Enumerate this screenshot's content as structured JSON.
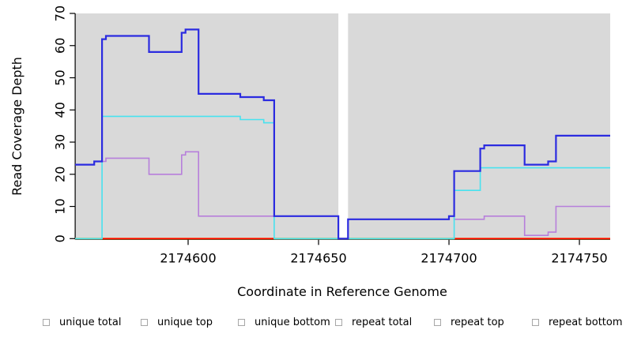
{
  "chart_data": {
    "type": "line",
    "line_style": "step",
    "title": "",
    "xlabel": "Coordinate in Reference Genome",
    "ylabel": "Read Coverage Depth",
    "xlim": [
      2174556.7,
      2174761.8
    ],
    "ylim": [
      0,
      70
    ],
    "x_ticks": [
      2174600,
      2174650,
      2174700,
      2174750
    ],
    "y_ticks": [
      0,
      10,
      20,
      30,
      40,
      50,
      60,
      70
    ],
    "grid": "off",
    "legend_position": "bottom",
    "plot_background": "#d9d9d9",
    "gap_region": {
      "x_start": 2174657.6,
      "x_end": 2174661.3,
      "color": "#ffffff"
    },
    "baseline_blend_color": "#8fd9a8",
    "baseline_blend_segments": [
      [
        2174556.7,
        2174567
      ],
      [
        2174633,
        2174702
      ]
    ],
    "series": [
      {
        "name": "unique total",
        "color": "#2b2be0",
        "width": 2.2,
        "x_end": 2174761.8,
        "points": [
          [
            2174556.7,
            23
          ],
          [
            2174564,
            24
          ],
          [
            2174567,
            62
          ],
          [
            2174568.5,
            63
          ],
          [
            2174585,
            58
          ],
          [
            2174597.5,
            64
          ],
          [
            2174599,
            65
          ],
          [
            2174604,
            45
          ],
          [
            2174620,
            44
          ],
          [
            2174629,
            43
          ],
          [
            2174633,
            7
          ],
          [
            2174657.6,
            0
          ],
          [
            2174661.3,
            6
          ],
          [
            2174700,
            7
          ],
          [
            2174702,
            21
          ],
          [
            2174712,
            28
          ],
          [
            2174713.5,
            29
          ],
          [
            2174729,
            23
          ],
          [
            2174738,
            24
          ],
          [
            2174741,
            32
          ]
        ]
      },
      {
        "name": "unique top",
        "color": "#48e2ef",
        "width": 1.6,
        "x_end": 2174761.8,
        "points": [
          [
            2174556.7,
            0
          ],
          [
            2174567,
            38
          ],
          [
            2174620,
            37
          ],
          [
            2174629,
            36
          ],
          [
            2174633,
            0
          ],
          [
            2174702,
            15
          ],
          [
            2174712,
            22
          ]
        ]
      },
      {
        "name": "unique bottom",
        "color": "#b77fdb",
        "width": 1.6,
        "x_end": 2174761.8,
        "points": [
          [
            2174556.7,
            23
          ],
          [
            2174564,
            24
          ],
          [
            2174568.5,
            25
          ],
          [
            2174585,
            20
          ],
          [
            2174597.5,
            26
          ],
          [
            2174599,
            27
          ],
          [
            2174604,
            7
          ],
          [
            2174657.6,
            0
          ],
          [
            2174661.3,
            6
          ],
          [
            2174700,
            7
          ],
          [
            2174702,
            6
          ],
          [
            2174713.5,
            7
          ],
          [
            2174729,
            1
          ],
          [
            2174738,
            2
          ],
          [
            2174741,
            10
          ]
        ]
      },
      {
        "name": "repeat total",
        "color": "#ff0000",
        "width": 1.6,
        "x_end": 2174761.8,
        "points": [
          [
            2174556.7,
            0
          ]
        ]
      },
      {
        "name": "repeat top",
        "color": "#ffff00",
        "width": 1.6,
        "x_end": 2174761.8,
        "points": [
          [
            2174556.7,
            0
          ]
        ]
      },
      {
        "name": "repeat bottom",
        "color": "#ffa500",
        "width": 2.0,
        "x_end": 2174761.8,
        "points": [
          [
            2174556.7,
            0
          ]
        ]
      }
    ],
    "legend": [
      {
        "label": "unique total",
        "color": "#0000ee"
      },
      {
        "label": "unique top",
        "color": "#00ffff"
      },
      {
        "label": "unique bottom",
        "color": "#a623d8"
      },
      {
        "label": "repeat total",
        "color": "#ff0000"
      },
      {
        "label": "repeat top",
        "color": "#ffff00"
      },
      {
        "label": "repeat bottom",
        "color": "#ffa500"
      }
    ]
  }
}
